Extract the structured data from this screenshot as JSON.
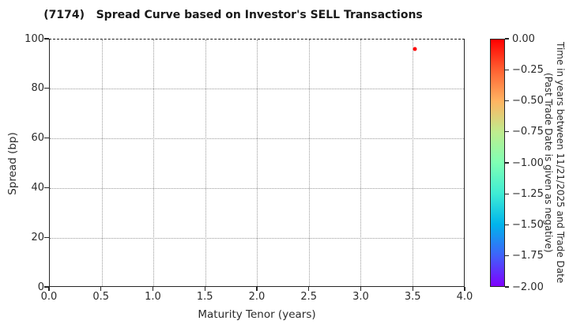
{
  "chart_data": {
    "type": "scatter",
    "title": "(7174)   Spread Curve based on Investor's SELL Transactions",
    "xlabel": "Maturity Tenor (years)",
    "ylabel": "Spread (bp)",
    "xlim": [
      0.0,
      4.0
    ],
    "ylim": [
      0,
      100
    ],
    "x_ticks": [
      "0.0",
      "0.5",
      "1.0",
      "1.5",
      "2.0",
      "2.5",
      "3.0",
      "3.5",
      "4.0"
    ],
    "y_ticks": [
      "0",
      "20",
      "40",
      "60",
      "80",
      "100"
    ],
    "grid": true,
    "grid_style": "dotted",
    "legend": "none",
    "points": [
      {
        "x": 3.53,
        "y": 96.3,
        "color_value": 0.0,
        "color": "#ff0000"
      }
    ],
    "colorbar": {
      "label_line1": "Time in years between 11/21/2025 and Trade Date",
      "label_line2": "(Past Trade Date is given as negative)",
      "tick_labels": [
        "0.00",
        "−0.25",
        "−0.50",
        "−0.75",
        "−1.00",
        "−1.25",
        "−1.50",
        "−1.75",
        "−2.00"
      ],
      "range_top": 0.0,
      "range_bottom": -2.0,
      "colormap": "rainbow",
      "gradient_stops": [
        "#ff0000",
        "#ff6232",
        "#ffb462",
        "#bfec8e",
        "#7fffb4",
        "#3fecd4",
        "#00b4ec",
        "#3f62fa",
        "#7f00ff"
      ]
    }
  }
}
